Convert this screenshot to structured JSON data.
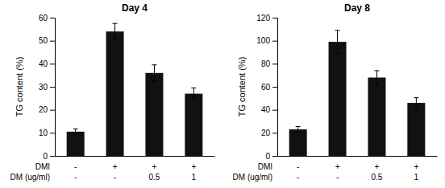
{
  "chart_data": [
    {
      "type": "bar",
      "title": "Day 4",
      "ylabel": "TG content (%)",
      "values": [
        10.5,
        54.0,
        36.0,
        27.0
      ],
      "errors": [
        1.2,
        3.5,
        3.5,
        2.5
      ],
      "color": "#111111",
      "ylim": [
        0,
        60
      ],
      "yticks": [
        0,
        10,
        20,
        30,
        40,
        50,
        60
      ],
      "grid": false,
      "annotations": [
        {
          "text": "DMI",
          "row": [
            "-",
            "+",
            "+",
            "+"
          ]
        },
        {
          "text": "DM (ug/ml)",
          "row": [
            "-",
            "-",
            "0.5",
            "1"
          ]
        }
      ]
    },
    {
      "type": "bar",
      "title": "Day 8",
      "ylabel": "TG content (%)",
      "values": [
        23.0,
        99.0,
        68.0,
        46.0
      ],
      "errors": [
        2.5,
        10.0,
        6.0,
        4.5
      ],
      "color": "#111111",
      "ylim": [
        0,
        120
      ],
      "yticks": [
        0,
        20,
        40,
        60,
        80,
        100,
        120
      ],
      "grid": false,
      "annotations": [
        {
          "text": "DMI",
          "row": [
            "-",
            "+",
            "+",
            "+"
          ]
        },
        {
          "text": "DM (ug/ml)",
          "row": [
            "-",
            "-",
            "0.5",
            "1"
          ]
        }
      ]
    }
  ]
}
